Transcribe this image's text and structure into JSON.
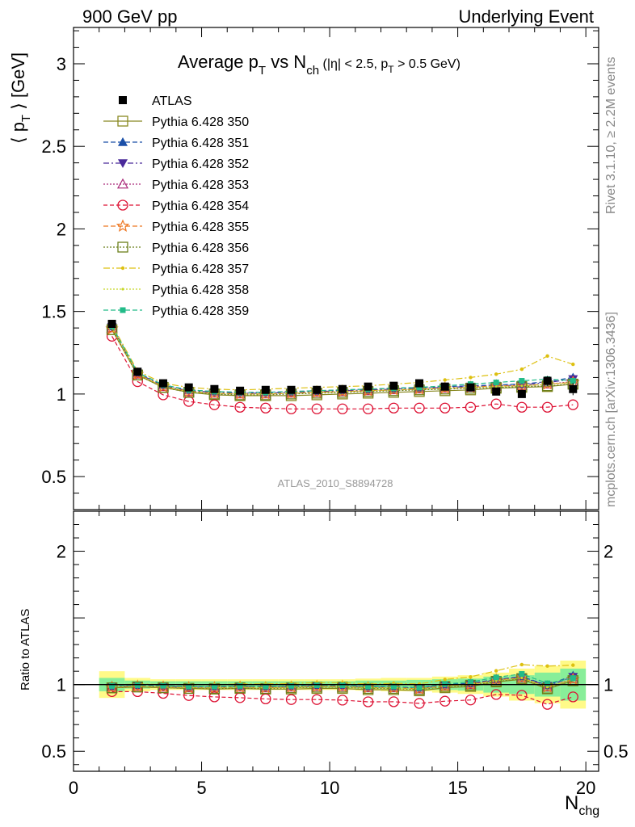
{
  "header": {
    "left": "900 GeV pp",
    "right": "Underlying Event",
    "plot_title_main": "Average p",
    "plot_title_sub1": "T",
    "plot_title_mid": " vs N",
    "plot_title_sub2": "ch",
    "plot_title_cond_a": " (|η| < 2.5, p",
    "plot_title_cond_sub": "T",
    "plot_title_cond_b": " > 0.5 GeV)"
  },
  "side_text": {
    "rivet": "Rivet 3.1.10, ≥ 2.2M events",
    "mcplots": "mcplots.cern.ch [arXiv:1306.3436]"
  },
  "watermark": "ATLAS_2010_S8894728",
  "axes": {
    "ylabel_top_a": "⟨ p",
    "ylabel_top_sub": "T",
    "ylabel_top_b": " ⟩ [GeV]",
    "ylabel_bottom": "Ratio to ATLAS",
    "xlabel_main": "N",
    "xlabel_sub": "chg"
  },
  "chart_data": {
    "type": "line",
    "x": [
      1.5,
      2.5,
      3.5,
      4.5,
      5.5,
      6.5,
      7.5,
      8.5,
      9.5,
      10.5,
      11.5,
      12.5,
      13.5,
      14.5,
      15.5,
      16.5,
      17.5,
      18.5,
      19.5
    ],
    "x_ticks": [
      0,
      5,
      10,
      15,
      20
    ],
    "xlim": [
      0,
      20.5
    ],
    "main_ylim": [
      0.3,
      3.22
    ],
    "main_y_ticks": [
      0.5,
      1,
      1.5,
      2,
      2.5,
      3
    ],
    "ratio_ylim": [
      0.35,
      2.3
    ],
    "ratio_y_ticks": [
      0.5,
      1,
      2
    ],
    "reference": {
      "name": "ATLAS",
      "color": "#000000",
      "values": [
        1.425,
        1.135,
        1.065,
        1.04,
        1.03,
        1.02,
        1.025,
        1.025,
        1.025,
        1.03,
        1.045,
        1.05,
        1.065,
        1.045,
        1.04,
        1.015,
        1.0,
        1.08,
        1.03
      ],
      "band_inner": [
        0.05,
        0.03,
        0.025,
        0.025,
        0.025,
        0.025,
        0.025,
        0.025,
        0.025,
        0.025,
        0.03,
        0.03,
        0.035,
        0.04,
        0.045,
        0.06,
        0.07,
        0.09,
        0.12
      ],
      "band_outer": [
        0.1,
        0.05,
        0.04,
        0.04,
        0.04,
        0.04,
        0.04,
        0.04,
        0.04,
        0.04,
        0.045,
        0.05,
        0.05,
        0.06,
        0.07,
        0.09,
        0.12,
        0.14,
        0.18
      ]
    },
    "series": [
      {
        "name": "Pythia 6.428 350",
        "color": "#888820",
        "marker": "square-open",
        "dash": "",
        "values": [
          1.39,
          1.115,
          1.04,
          1.01,
          0.995,
          0.99,
          0.99,
          0.99,
          0.995,
          1.0,
          1.005,
          1.01,
          1.015,
          1.02,
          1.025,
          1.035,
          1.04,
          1.045,
          1.06
        ]
      },
      {
        "name": "Pythia 6.428 351",
        "color": "#1a4fa8",
        "marker": "triangle-up",
        "dash": "6,3",
        "values": [
          1.41,
          1.13,
          1.055,
          1.025,
          1.015,
          1.01,
          1.01,
          1.015,
          1.02,
          1.025,
          1.03,
          1.035,
          1.04,
          1.045,
          1.05,
          1.055,
          1.06,
          1.075,
          1.1
        ]
      },
      {
        "name": "Pythia 6.428 352",
        "color": "#4a2a9a",
        "marker": "triangle-down",
        "dash": "7,3,2,3",
        "values": [
          1.405,
          1.125,
          1.05,
          1.02,
          1.01,
          1.005,
          1.005,
          1.01,
          1.015,
          1.02,
          1.025,
          1.03,
          1.035,
          1.04,
          1.045,
          1.05,
          1.055,
          1.07,
          1.09
        ]
      },
      {
        "name": "Pythia 6.428 353",
        "color": "#aa2a7a",
        "marker": "triangle-open",
        "dash": "2,2",
        "values": [
          1.4,
          1.12,
          1.045,
          1.015,
          1.005,
          1.0,
          1.0,
          1.005,
          1.01,
          1.015,
          1.02,
          1.025,
          1.03,
          1.035,
          1.04,
          1.045,
          1.05,
          1.06,
          1.075
        ]
      },
      {
        "name": "Pythia 6.428 354",
        "color": "#dd1133",
        "marker": "circle-open",
        "dash": "5,3",
        "values": [
          1.35,
          1.075,
          0.995,
          0.955,
          0.935,
          0.92,
          0.915,
          0.91,
          0.91,
          0.91,
          0.91,
          0.915,
          0.915,
          0.915,
          0.92,
          0.94,
          0.92,
          0.92,
          0.935
        ]
      },
      {
        "name": "Pythia 6.428 355",
        "color": "#ee7722",
        "marker": "star-open",
        "dash": "6,3",
        "values": [
          1.395,
          1.12,
          1.045,
          1.015,
          1.005,
          1.0,
          1.0,
          1.005,
          1.01,
          1.015,
          1.02,
          1.025,
          1.03,
          1.035,
          1.04,
          1.05,
          1.05,
          1.06,
          1.07
        ]
      },
      {
        "name": "Pythia 6.428 356",
        "color": "#6b7f1a",
        "marker": "square-open",
        "dash": "2,2",
        "values": [
          1.39,
          1.115,
          1.04,
          1.01,
          1.0,
          0.995,
          0.995,
          1.0,
          1.005,
          1.01,
          1.015,
          1.02,
          1.025,
          1.03,
          1.035,
          1.04,
          1.045,
          1.05,
          1.06
        ]
      },
      {
        "name": "Pythia 6.428 357",
        "color": "#ddc010",
        "marker": "dot",
        "dash": "8,3,2,3",
        "values": [
          1.42,
          1.14,
          1.065,
          1.04,
          1.03,
          1.025,
          1.03,
          1.035,
          1.04,
          1.045,
          1.05,
          1.06,
          1.07,
          1.085,
          1.1,
          1.12,
          1.15,
          1.23,
          1.18
        ]
      },
      {
        "name": "Pythia 6.428 358",
        "color": "#c8d82a",
        "marker": "dot-small",
        "dash": "2,2",
        "values": [
          1.4,
          1.12,
          1.045,
          1.015,
          1.005,
          1.0,
          1.0,
          1.005,
          1.01,
          1.015,
          1.02,
          1.025,
          1.03,
          1.035,
          1.04,
          1.045,
          1.05,
          1.06,
          1.07
        ]
      },
      {
        "name": "Pythia 6.428 359",
        "color": "#22bb88",
        "marker": "square-small",
        "dash": "6,3",
        "values": [
          1.41,
          1.13,
          1.055,
          1.025,
          1.015,
          1.01,
          1.01,
          1.015,
          1.02,
          1.025,
          1.03,
          1.035,
          1.04,
          1.05,
          1.06,
          1.07,
          1.08,
          1.09,
          1.08
        ]
      }
    ]
  }
}
